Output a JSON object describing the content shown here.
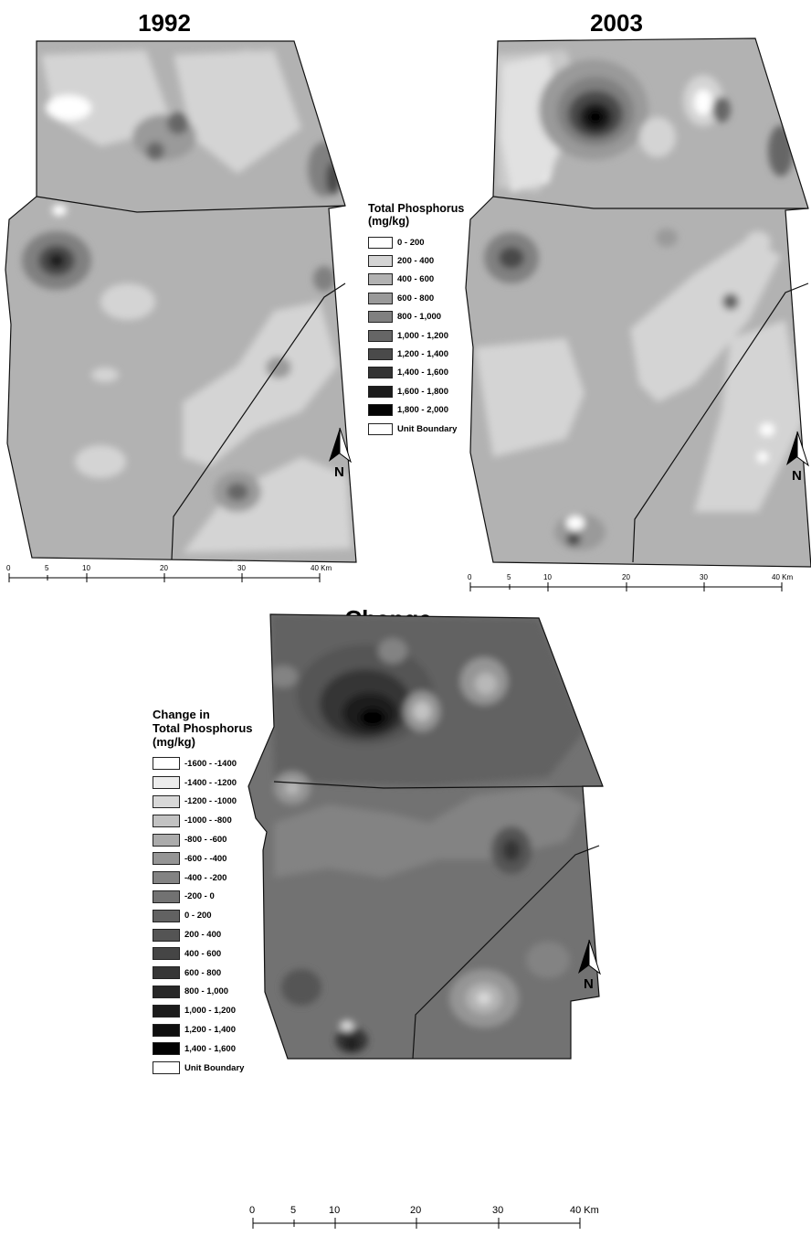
{
  "panels": {
    "p1992": {
      "title": "1992"
    },
    "p2003": {
      "title": "2003"
    },
    "change": {
      "title": "Change"
    }
  },
  "legend_tp": {
    "title_lines": [
      "Total Phosphorus",
      "(mg/kg)"
    ],
    "items": [
      {
        "label": "0 - 200",
        "color": "#ffffff"
      },
      {
        "label": "200 - 400",
        "color": "#d4d4d4"
      },
      {
        "label": "400 - 600",
        "color": "#b2b2b2"
      },
      {
        "label": "600 - 800",
        "color": "#9a9a9a"
      },
      {
        "label": "800 - 1,000",
        "color": "#808080"
      },
      {
        "label": "1,000 - 1,200",
        "color": "#666666"
      },
      {
        "label": "1,200 - 1,400",
        "color": "#4a4a4a"
      },
      {
        "label": "1,400 - 1,600",
        "color": "#333333"
      },
      {
        "label": "1,600 - 1,800",
        "color": "#1c1c1c"
      },
      {
        "label": "1,800 - 2,000",
        "color": "#050505"
      },
      {
        "label": "Unit Boundary",
        "color": "#ffffff"
      }
    ]
  },
  "legend_change": {
    "title_lines": [
      "Change in",
      "Total Phosphorus",
      "(mg/kg)"
    ],
    "items": [
      {
        "label": "-1600 - -1400",
        "color": "#ffffff"
      },
      {
        "label": "-1400 - -1200",
        "color": "#ececec"
      },
      {
        "label": "-1200 - -1000",
        "color": "#d8d8d8"
      },
      {
        "label": "-1000 - -800",
        "color": "#c2c2c2"
      },
      {
        "label": "-800 - -600",
        "color": "#ababab"
      },
      {
        "label": "-600 - -400",
        "color": "#959595"
      },
      {
        "label": "-400 - -200",
        "color": "#838383"
      },
      {
        "label": "-200 - 0",
        "color": "#727272"
      },
      {
        "label": "0 - 200",
        "color": "#626262"
      },
      {
        "label": "200 - 400",
        "color": "#545454"
      },
      {
        "label": "400 - 600",
        "color": "#454545"
      },
      {
        "label": "600 - 800",
        "color": "#363636"
      },
      {
        "label": "800 - 1,000",
        "color": "#282828"
      },
      {
        "label": "1,000 - 1,200",
        "color": "#1c1c1c"
      },
      {
        "label": "1,200 - 1,400",
        "color": "#0f0f0f"
      },
      {
        "label": "1,400 - 1,600",
        "color": "#030303"
      },
      {
        "label": "Unit Boundary",
        "color": "#ffffff"
      }
    ]
  },
  "scalebar": {
    "ticks": [
      "0",
      "5",
      "10",
      "20",
      "30",
      "40 Km"
    ]
  },
  "north_label": "N"
}
